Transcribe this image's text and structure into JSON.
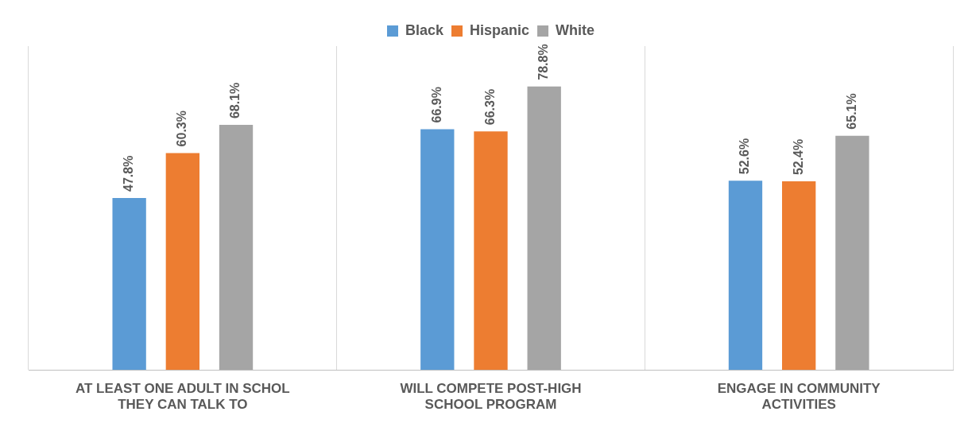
{
  "chart_data": {
    "type": "bar",
    "categories": [
      "AT LEAST ONE ADULT IN SCHOL THEY CAN TALK TO",
      "WILL COMPETE POST-HIGH SCHOOL PROGRAM",
      "ENGAGE IN COMMUNITY ACTIVITIES"
    ],
    "series": [
      {
        "name": "Black",
        "color": "#5b9bd5",
        "values": [
          47.8,
          66.9,
          52.6
        ],
        "value_labels": [
          "47.8%",
          "66.9%",
          "52.6%"
        ]
      },
      {
        "name": "Hispanic",
        "color": "#ed7d31",
        "values": [
          60.3,
          66.3,
          52.4
        ],
        "value_labels": [
          "60.3%",
          "66.3%",
          "52.4%"
        ]
      },
      {
        "name": "White",
        "color": "#a5a5a5",
        "values": [
          68.1,
          78.8,
          65.1
        ],
        "value_labels": [
          "68.1%",
          "78.8%",
          "65.1%"
        ]
      }
    ],
    "grid": "x",
    "legend": "top"
  }
}
